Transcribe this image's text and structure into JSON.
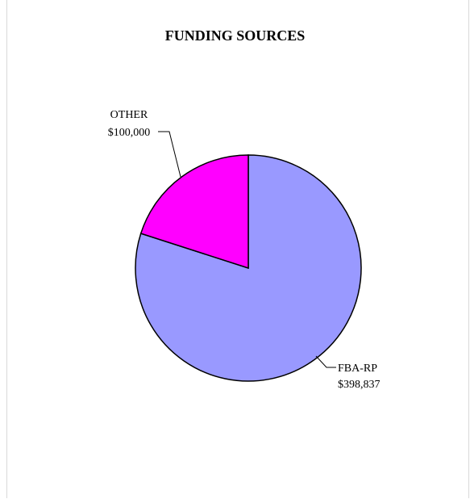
{
  "chart_data": {
    "type": "pie",
    "title": "FUNDING SOURCES",
    "slices": [
      {
        "label": "FBA-RP",
        "value_label": "$398,837",
        "value": 398837,
        "color": "#9999ff"
      },
      {
        "label": "OTHER",
        "value_label": "$100,000",
        "value": 100000,
        "color": "#ff00ff"
      }
    ],
    "legend": "none",
    "labels_placement": "outside-with-leader-lines"
  }
}
